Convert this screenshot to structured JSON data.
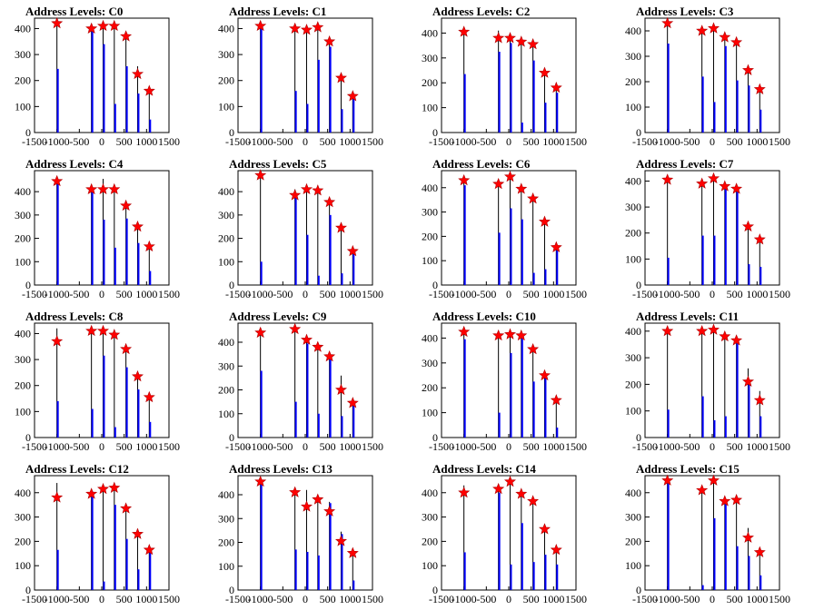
{
  "chart_data": [
    {
      "type": "bar",
      "title": "Address Levels: C0",
      "xlim": [
        -1500,
        1500
      ],
      "ylim": [
        0,
        440
      ],
      "yticks": [
        0,
        100,
        200,
        300,
        400
      ],
      "xtick_labels": [
        "-1500",
        "-1000",
        "-500",
        "0",
        "500",
        "1000",
        "1500"
      ],
      "peaks": [
        {
          "x": -1000,
          "black": 420,
          "blue": 245,
          "marker": 420
        },
        {
          "x": -230,
          "black": 400,
          "blue": 400,
          "marker": 400
        },
        {
          "x": 30,
          "black": 410,
          "blue": 340,
          "marker": 410
        },
        {
          "x": 280,
          "black": 410,
          "blue": 110,
          "marker": 410
        },
        {
          "x": 540,
          "black": 370,
          "blue": 255,
          "marker": 370
        },
        {
          "x": 800,
          "black": 255,
          "blue": 150,
          "marker": 225
        },
        {
          "x": 1060,
          "black": 160,
          "blue": 50,
          "marker": 160
        }
      ]
    },
    {
      "type": "bar",
      "title": "Address Levels: C1",
      "xlim": [
        -1500,
        1500
      ],
      "ylim": [
        0,
        440
      ],
      "yticks": [
        0,
        100,
        200,
        300,
        400
      ],
      "xtick_labels": [
        "-1500",
        "-1000",
        "-500",
        "0",
        "500",
        "1000",
        "1500"
      ],
      "peaks": [
        {
          "x": -1000,
          "black": 410,
          "blue": 410,
          "marker": 410
        },
        {
          "x": -230,
          "black": 400,
          "blue": 160,
          "marker": 400
        },
        {
          "x": 30,
          "black": 400,
          "blue": 110,
          "marker": 395
        },
        {
          "x": 280,
          "black": 405,
          "blue": 280,
          "marker": 405
        },
        {
          "x": 540,
          "black": 355,
          "blue": 330,
          "marker": 350
        },
        {
          "x": 800,
          "black": 210,
          "blue": 90,
          "marker": 210
        },
        {
          "x": 1060,
          "black": 140,
          "blue": 140,
          "marker": 140
        }
      ]
    },
    {
      "type": "bar",
      "title": "Address Levels: C2",
      "xlim": [
        -1500,
        1500
      ],
      "ylim": [
        0,
        460
      ],
      "yticks": [
        0,
        100,
        200,
        300,
        400
      ],
      "xtick_labels": [
        "-1500",
        "-1000",
        "-500",
        "0",
        "500",
        "1000",
        "1500"
      ],
      "peaks": [
        {
          "x": -1000,
          "black": 405,
          "blue": 235,
          "marker": 405
        },
        {
          "x": -230,
          "black": 410,
          "blue": 325,
          "marker": 380
        },
        {
          "x": 30,
          "black": 380,
          "blue": 360,
          "marker": 380
        },
        {
          "x": 280,
          "black": 380,
          "blue": 40,
          "marker": 365
        },
        {
          "x": 540,
          "black": 360,
          "blue": 290,
          "marker": 355
        },
        {
          "x": 800,
          "black": 240,
          "blue": 120,
          "marker": 240
        },
        {
          "x": 1060,
          "black": 180,
          "blue": 160,
          "marker": 180
        }
      ]
    },
    {
      "type": "bar",
      "title": "Address Levels: C3",
      "xlim": [
        -1500,
        1500
      ],
      "ylim": [
        0,
        450
      ],
      "yticks": [
        0,
        100,
        200,
        300,
        400
      ],
      "xtick_labels": [
        "-1500",
        "-1000",
        "-500",
        "0",
        "500",
        "1000",
        "1500"
      ],
      "peaks": [
        {
          "x": -1000,
          "black": 430,
          "blue": 350,
          "marker": 430
        },
        {
          "x": -230,
          "black": 400,
          "blue": 220,
          "marker": 400
        },
        {
          "x": 30,
          "black": 410,
          "blue": 120,
          "marker": 410
        },
        {
          "x": 280,
          "black": 375,
          "blue": 340,
          "marker": 375
        },
        {
          "x": 540,
          "black": 360,
          "blue": 205,
          "marker": 355
        },
        {
          "x": 800,
          "black": 245,
          "blue": 185,
          "marker": 245
        },
        {
          "x": 1060,
          "black": 170,
          "blue": 90,
          "marker": 170
        }
      ]
    },
    {
      "type": "bar",
      "title": "Address Levels: C4",
      "xlim": [
        -1500,
        1500
      ],
      "ylim": [
        0,
        490
      ],
      "yticks": [
        0,
        100,
        200,
        300,
        400
      ],
      "xtick_labels": [
        "-1500",
        "-1000",
        "-500",
        "0",
        "500",
        "1000",
        "1500"
      ],
      "peaks": [
        {
          "x": -1000,
          "black": 445,
          "blue": 445,
          "marker": 445
        },
        {
          "x": -230,
          "black": 420,
          "blue": 410,
          "marker": 410
        },
        {
          "x": 30,
          "black": 455,
          "blue": 280,
          "marker": 410
        },
        {
          "x": 280,
          "black": 420,
          "blue": 160,
          "marker": 410
        },
        {
          "x": 540,
          "black": 340,
          "blue": 285,
          "marker": 340
        },
        {
          "x": 800,
          "black": 250,
          "blue": 180,
          "marker": 250
        },
        {
          "x": 1060,
          "black": 170,
          "blue": 60,
          "marker": 165
        }
      ]
    },
    {
      "type": "bar",
      "title": "Address Levels: C5",
      "xlim": [
        -1500,
        1500
      ],
      "ylim": [
        0,
        490
      ],
      "yticks": [
        0,
        100,
        200,
        300,
        400
      ],
      "xtick_labels": [
        "-1500",
        "-1000",
        "-500",
        "0",
        "500",
        "1000",
        "1500"
      ],
      "peaks": [
        {
          "x": -1000,
          "black": 470,
          "blue": 100,
          "marker": 470
        },
        {
          "x": -230,
          "black": 410,
          "blue": 380,
          "marker": 385
        },
        {
          "x": 30,
          "black": 415,
          "blue": 215,
          "marker": 410
        },
        {
          "x": 280,
          "black": 410,
          "blue": 40,
          "marker": 405
        },
        {
          "x": 540,
          "black": 360,
          "blue": 300,
          "marker": 355
        },
        {
          "x": 800,
          "black": 245,
          "blue": 50,
          "marker": 245
        },
        {
          "x": 1060,
          "black": 145,
          "blue": 140,
          "marker": 145
        }
      ]
    },
    {
      "type": "bar",
      "title": "Address Levels: C6",
      "xlim": [
        -1500,
        1500
      ],
      "ylim": [
        0,
        470
      ],
      "yticks": [
        0,
        100,
        200,
        300,
        400
      ],
      "xtick_labels": [
        "-1500",
        "-1000",
        "-500",
        "0",
        "500",
        "1000",
        "1500"
      ],
      "peaks": [
        {
          "x": -1000,
          "black": 430,
          "blue": 410,
          "marker": 430
        },
        {
          "x": -230,
          "black": 420,
          "blue": 215,
          "marker": 415
        },
        {
          "x": 30,
          "black": 450,
          "blue": 315,
          "marker": 445
        },
        {
          "x": 280,
          "black": 400,
          "blue": 270,
          "marker": 395
        },
        {
          "x": 540,
          "black": 365,
          "blue": 50,
          "marker": 355
        },
        {
          "x": 800,
          "black": 270,
          "blue": 65,
          "marker": 260
        },
        {
          "x": 1060,
          "black": 160,
          "blue": 155,
          "marker": 155
        }
      ]
    },
    {
      "type": "bar",
      "title": "Address Levels: C7",
      "xlim": [
        -1500,
        1500
      ],
      "ylim": [
        0,
        440
      ],
      "yticks": [
        0,
        100,
        200,
        300,
        400
      ],
      "xtick_labels": [
        "-1500",
        "-1000",
        "-500",
        "0",
        "500",
        "1000",
        "1500"
      ],
      "peaks": [
        {
          "x": -1000,
          "black": 410,
          "blue": 105,
          "marker": 405
        },
        {
          "x": -230,
          "black": 390,
          "blue": 190,
          "marker": 390
        },
        {
          "x": 30,
          "black": 410,
          "blue": 190,
          "marker": 410
        },
        {
          "x": 280,
          "black": 390,
          "blue": 385,
          "marker": 380
        },
        {
          "x": 540,
          "black": 380,
          "blue": 375,
          "marker": 370
        },
        {
          "x": 800,
          "black": 240,
          "blue": 80,
          "marker": 225
        },
        {
          "x": 1060,
          "black": 180,
          "blue": 70,
          "marker": 175
        }
      ]
    },
    {
      "type": "bar",
      "title": "Address Levels: C8",
      "xlim": [
        -1500,
        1500
      ],
      "ylim": [
        0,
        440
      ],
      "yticks": [
        0,
        100,
        200,
        300,
        400
      ],
      "xtick_labels": [
        "-1500",
        "-1000",
        "-500",
        "0",
        "500",
        "1000",
        "1500"
      ],
      "peaks": [
        {
          "x": -1000,
          "black": 420,
          "blue": 140,
          "marker": 370
        },
        {
          "x": -230,
          "black": 410,
          "blue": 110,
          "marker": 410
        },
        {
          "x": 30,
          "black": 410,
          "blue": 315,
          "marker": 410
        },
        {
          "x": 280,
          "black": 400,
          "blue": 40,
          "marker": 395
        },
        {
          "x": 540,
          "black": 350,
          "blue": 270,
          "marker": 340
        },
        {
          "x": 800,
          "black": 240,
          "blue": 185,
          "marker": 235
        },
        {
          "x": 1060,
          "black": 160,
          "blue": 60,
          "marker": 155
        }
      ]
    },
    {
      "type": "bar",
      "title": "Address Levels: C9",
      "xlim": [
        -1500,
        1500
      ],
      "ylim": [
        0,
        480
      ],
      "yticks": [
        0,
        100,
        200,
        300,
        400
      ],
      "xtick_labels": [
        "-1500",
        "-1000",
        "-500",
        "0",
        "500",
        "1000",
        "1500"
      ],
      "peaks": [
        {
          "x": -1000,
          "black": 440,
          "blue": 280,
          "marker": 440
        },
        {
          "x": -230,
          "black": 460,
          "blue": 150,
          "marker": 455
        },
        {
          "x": 30,
          "black": 430,
          "blue": 395,
          "marker": 410
        },
        {
          "x": 280,
          "black": 390,
          "blue": 100,
          "marker": 380
        },
        {
          "x": 540,
          "black": 350,
          "blue": 340,
          "marker": 340
        },
        {
          "x": 800,
          "black": 260,
          "blue": 90,
          "marker": 200
        },
        {
          "x": 1060,
          "black": 150,
          "blue": 140,
          "marker": 145
        }
      ]
    },
    {
      "type": "bar",
      "title": "Address Levels: C10",
      "xlim": [
        -1500,
        1500
      ],
      "ylim": [
        0,
        460
      ],
      "yticks": [
        0,
        100,
        200,
        300,
        400
      ],
      "xtick_labels": [
        "-1500",
        "-1000",
        "-500",
        "0",
        "500",
        "1000",
        "1500"
      ],
      "peaks": [
        {
          "x": -1000,
          "black": 430,
          "blue": 395,
          "marker": 425
        },
        {
          "x": -230,
          "black": 410,
          "blue": 100,
          "marker": 410
        },
        {
          "x": 30,
          "black": 420,
          "blue": 340,
          "marker": 415
        },
        {
          "x": 280,
          "black": 410,
          "blue": 400,
          "marker": 410
        },
        {
          "x": 540,
          "black": 360,
          "blue": 225,
          "marker": 355
        },
        {
          "x": 800,
          "black": 250,
          "blue": 240,
          "marker": 250
        },
        {
          "x": 1060,
          "black": 160,
          "blue": 40,
          "marker": 150
        }
      ]
    },
    {
      "type": "bar",
      "title": "Address Levels: C11",
      "xlim": [
        -1500,
        1500
      ],
      "ylim": [
        0,
        430
      ],
      "yticks": [
        0,
        100,
        200,
        300,
        400
      ],
      "xtick_labels": [
        "-1500",
        "-1000",
        "-500",
        "0",
        "500",
        "1000",
        "1500"
      ],
      "peaks": [
        {
          "x": -1000,
          "black": 410,
          "blue": 105,
          "marker": 400
        },
        {
          "x": -230,
          "black": 405,
          "blue": 155,
          "marker": 400
        },
        {
          "x": 30,
          "black": 410,
          "blue": 65,
          "marker": 405
        },
        {
          "x": 280,
          "black": 390,
          "blue": 80,
          "marker": 380
        },
        {
          "x": 540,
          "black": 370,
          "blue": 365,
          "marker": 365
        },
        {
          "x": 800,
          "black": 260,
          "blue": 210,
          "marker": 210
        },
        {
          "x": 1060,
          "black": 175,
          "blue": 80,
          "marker": 140
        }
      ]
    },
    {
      "type": "bar",
      "title": "Address Levels: C12",
      "xlim": [
        -1500,
        1500
      ],
      "ylim": [
        0,
        470
      ],
      "yticks": [
        0,
        100,
        200,
        300,
        400
      ],
      "xtick_labels": [
        "-1500",
        "-1000",
        "-500",
        "0",
        "500",
        "1000",
        "1500"
      ],
      "peaks": [
        {
          "x": -1000,
          "black": 440,
          "blue": 165,
          "marker": 380
        },
        {
          "x": -230,
          "black": 410,
          "blue": 405,
          "marker": 395
        },
        {
          "x": 30,
          "black": 420,
          "blue": 35,
          "marker": 415
        },
        {
          "x": 280,
          "black": 430,
          "blue": 350,
          "marker": 420
        },
        {
          "x": 540,
          "black": 340,
          "blue": 210,
          "marker": 335
        },
        {
          "x": 800,
          "black": 230,
          "blue": 85,
          "marker": 230
        },
        {
          "x": 1060,
          "black": 170,
          "blue": 160,
          "marker": 165
        }
      ]
    },
    {
      "type": "bar",
      "title": "Address Levels: C13",
      "xlim": [
        -1500,
        1500
      ],
      "ylim": [
        0,
        480
      ],
      "yticks": [
        0,
        100,
        200,
        300,
        400
      ],
      "xtick_labels": [
        "-1500",
        "-1000",
        "-500",
        "0",
        "500",
        "1000",
        "1500"
      ],
      "peaks": [
        {
          "x": -1000,
          "black": 460,
          "blue": 445,
          "marker": 455
        },
        {
          "x": -230,
          "black": 410,
          "blue": 170,
          "marker": 410
        },
        {
          "x": 30,
          "black": 420,
          "blue": 160,
          "marker": 350
        },
        {
          "x": 280,
          "black": 380,
          "blue": 145,
          "marker": 380
        },
        {
          "x": 540,
          "black": 370,
          "blue": 365,
          "marker": 330
        },
        {
          "x": 800,
          "black": 245,
          "blue": 235,
          "marker": 205
        },
        {
          "x": 1060,
          "black": 160,
          "blue": 40,
          "marker": 155
        }
      ]
    },
    {
      "type": "bar",
      "title": "Address Levels: C14",
      "xlim": [
        -1500,
        1500
      ],
      "ylim": [
        0,
        470
      ],
      "yticks": [
        0,
        100,
        200,
        300,
        400
      ],
      "xtick_labels": [
        "-1500",
        "-1000",
        "-500",
        "0",
        "500",
        "1000",
        "1500"
      ],
      "peaks": [
        {
          "x": -1000,
          "black": 430,
          "blue": 155,
          "marker": 400
        },
        {
          "x": -230,
          "black": 420,
          "blue": 400,
          "marker": 415
        },
        {
          "x": 30,
          "black": 450,
          "blue": 105,
          "marker": 445
        },
        {
          "x": 280,
          "black": 400,
          "blue": 275,
          "marker": 395
        },
        {
          "x": 540,
          "black": 370,
          "blue": 115,
          "marker": 365
        },
        {
          "x": 800,
          "black": 255,
          "blue": 145,
          "marker": 250
        },
        {
          "x": 1060,
          "black": 170,
          "blue": 105,
          "marker": 165
        }
      ]
    },
    {
      "type": "bar",
      "title": "Address Levels: C15",
      "xlim": [
        -1500,
        1500
      ],
      "ylim": [
        0,
        470
      ],
      "yticks": [
        0,
        100,
        200,
        300,
        400
      ],
      "xtick_labels": [
        "-1500",
        "-1000",
        "-500",
        "0",
        "500",
        "1000",
        "1500"
      ],
      "peaks": [
        {
          "x": -1000,
          "black": 455,
          "blue": 450,
          "marker": 450
        },
        {
          "x": -230,
          "black": 415,
          "blue": 20,
          "marker": 410
        },
        {
          "x": 30,
          "black": 450,
          "blue": 295,
          "marker": 450
        },
        {
          "x": 280,
          "black": 380,
          "blue": 355,
          "marker": 365
        },
        {
          "x": 540,
          "black": 370,
          "blue": 180,
          "marker": 370
        },
        {
          "x": 800,
          "black": 255,
          "blue": 140,
          "marker": 215
        },
        {
          "x": 1060,
          "black": 170,
          "blue": 60,
          "marker": 155
        }
      ]
    }
  ],
  "style": {
    "hist_line_color": "#000000",
    "hist_fill_color": "#0000ff",
    "marker_color": "#ff0000"
  }
}
